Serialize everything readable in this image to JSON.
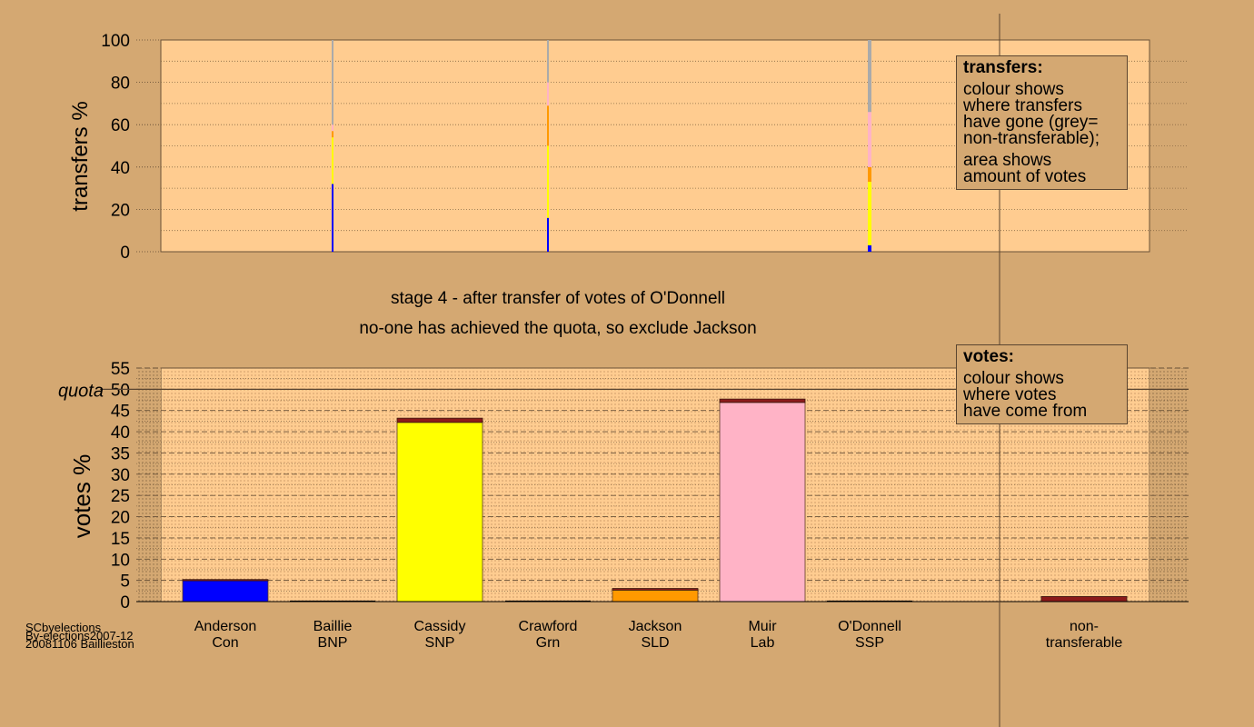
{
  "colors": {
    "background": "#d4a872",
    "plot_bg": "#ffcc90",
    "Con": "#0000ff",
    "BNP": "#1a1a1a",
    "SNP": "#ffff00",
    "Grn": "#00aa00",
    "SLD": "#ff9900",
    "Lab": "#ffb3c6",
    "SSP": "#cc0000",
    "nontransferable": "#aaaaaa",
    "transfer_layer": "#8b1a1a"
  },
  "stage_title": "stage 4 - after transfer of votes of O'Donnell",
  "stage_subtitle": "no-one has achieved the quota, so exclude Jackson",
  "footer": {
    "line1": "SCbyelections",
    "line2": "By-elections2007-12",
    "line3": "20081106 Baillieston"
  },
  "legend_transfers": {
    "title": "transfers:",
    "lines1": [
      "colour shows",
      "where transfers",
      "have gone (grey=",
      "non-transferable);"
    ],
    "lines2": [
      "area shows",
      "amount of votes"
    ]
  },
  "legend_votes": {
    "title": "votes:",
    "lines": [
      "colour shows",
      "where votes",
      "have come from"
    ]
  },
  "chart_data": [
    {
      "type": "bar",
      "ylabel": "transfers %",
      "ylim": [
        0,
        100
      ],
      "yticks": [
        0,
        20,
        40,
        60,
        80,
        100
      ],
      "columns": [
        {
          "candidate": "Baillie",
          "segments": [
            {
              "party": "Con",
              "value": 32
            },
            {
              "party": "SNP",
              "value": 22
            },
            {
              "party": "SLD",
              "value": 3
            },
            {
              "party": "Lab",
              "value": 3
            },
            {
              "party": "nontransferable",
              "value": 40
            }
          ]
        },
        {
          "candidate": "Crawford",
          "segments": [
            {
              "party": "Con",
              "value": 16
            },
            {
              "party": "SNP",
              "value": 34
            },
            {
              "party": "SLD",
              "value": 19
            },
            {
              "party": "Lab",
              "value": 11
            },
            {
              "party": "nontransferable",
              "value": 20
            }
          ]
        },
        {
          "candidate": "O'Donnell",
          "segments": [
            {
              "party": "Con",
              "value": 3
            },
            {
              "party": "SNP",
              "value": 30
            },
            {
              "party": "SLD",
              "value": 7
            },
            {
              "party": "Lab",
              "value": 26
            },
            {
              "party": "nontransferable",
              "value": 34
            }
          ]
        }
      ]
    },
    {
      "type": "bar",
      "ylabel": "votes %",
      "ylim": [
        0,
        55
      ],
      "yticks": [
        0,
        5,
        10,
        15,
        20,
        25,
        30,
        35,
        40,
        45,
        50,
        55
      ],
      "quota": 50,
      "quota_label": "quota",
      "categories": [
        {
          "name": "Anderson",
          "party": "Con"
        },
        {
          "name": "Baillie",
          "party": "BNP"
        },
        {
          "name": "Cassidy",
          "party": "SNP"
        },
        {
          "name": "Crawford",
          "party": "Grn"
        },
        {
          "name": "Jackson",
          "party": "SLD"
        },
        {
          "name": "Muir",
          "party": "Lab"
        },
        {
          "name": "O'Donnell",
          "party": "SSP"
        },
        {
          "name": "non-",
          "party": "transferable"
        }
      ],
      "first_preference_values": [
        4.9,
        0,
        42.2,
        0,
        2.7,
        46.9,
        0,
        0
      ],
      "transferred_values": [
        0.3,
        0,
        1.0,
        0,
        0.4,
        0.8,
        0,
        1.2
      ],
      "totals": [
        5.2,
        0,
        43.2,
        0,
        3.1,
        47.7,
        0,
        1.2
      ]
    }
  ]
}
